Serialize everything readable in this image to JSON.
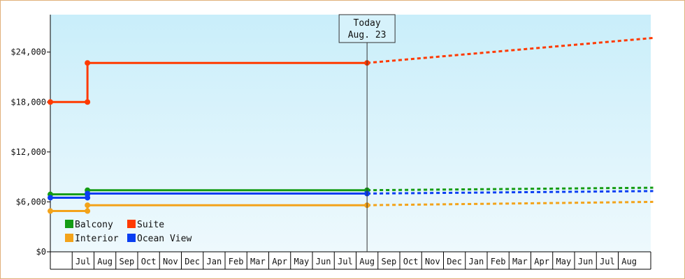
{
  "chart_data": {
    "type": "line",
    "title": "",
    "xlabel": "",
    "ylabel": "",
    "x_months": [
      "Jun",
      "Jul",
      "Aug",
      "Sep",
      "Oct",
      "Nov",
      "Dec",
      "Jan",
      "Feb",
      "Mar",
      "Apr",
      "May",
      "Jun",
      "Jul",
      "Aug",
      "Sep",
      "Oct",
      "Nov",
      "Dec",
      "Jan",
      "Feb",
      "Mar",
      "Apr",
      "May",
      "Jun",
      "Jul",
      "Aug"
    ],
    "x_tick_labels": [
      "Jul",
      "Aug",
      "Sep",
      "Oct",
      "Nov",
      "Dec",
      "Jan",
      "Feb",
      "Mar",
      "Apr",
      "May",
      "Jun",
      "Jul",
      "Aug",
      "Sep",
      "Oct",
      "Nov",
      "Dec",
      "Jan",
      "Feb",
      "Mar",
      "Apr",
      "May",
      "Jun",
      "Jul",
      "Aug"
    ],
    "ylim": [
      0,
      28500
    ],
    "y_ticks": [
      0,
      6000,
      12000,
      18000,
      24000
    ],
    "y_tick_labels": [
      "$0",
      "$6,000",
      "$12,000",
      "$18,000",
      "$24,000"
    ],
    "grid": false,
    "today": {
      "line1": "Today",
      "line2": "Aug. 23",
      "month_index": 14.5
    },
    "legend_position": "bottom-left",
    "series": [
      {
        "name": "Suite",
        "color": "#ff3a00",
        "history": [
          [
            0,
            18000
          ],
          [
            1.7,
            18000
          ],
          [
            1.7,
            22700
          ],
          [
            14.5,
            22700
          ]
        ],
        "forecast": [
          [
            14.5,
            22700
          ],
          [
            27.6,
            25700
          ]
        ],
        "markers": [
          0,
          1,
          2,
          3
        ]
      },
      {
        "name": "Balcony",
        "color": "#149c14",
        "history": [
          [
            0,
            6900
          ],
          [
            1.7,
            6900
          ],
          [
            1.7,
            7400
          ],
          [
            14.5,
            7400
          ]
        ],
        "forecast": [
          [
            14.5,
            7400
          ],
          [
            27.6,
            7700
          ]
        ],
        "markers": [
          0,
          1,
          2,
          3
        ]
      },
      {
        "name": "Ocean View",
        "color": "#0a3ef2",
        "history": [
          [
            0,
            6500
          ],
          [
            1.7,
            6500
          ],
          [
            1.7,
            7000
          ],
          [
            14.5,
            7000
          ]
        ],
        "forecast": [
          [
            14.5,
            7000
          ],
          [
            27.6,
            7300
          ]
        ],
        "markers": [
          0,
          1,
          2,
          3
        ]
      },
      {
        "name": "Interior",
        "color": "#f3a31a",
        "history": [
          [
            0,
            4900
          ],
          [
            1.7,
            4900
          ],
          [
            1.7,
            5600
          ],
          [
            14.5,
            5600
          ]
        ],
        "forecast": [
          [
            14.5,
            5600
          ],
          [
            27.6,
            6000
          ]
        ],
        "markers": [
          0,
          1,
          2,
          3
        ]
      }
    ],
    "legend": [
      {
        "name": "Balcony",
        "color": "#149c14"
      },
      {
        "name": "Suite",
        "color": "#ff3a00"
      },
      {
        "name": "Interior",
        "color": "#f3a31a"
      },
      {
        "name": "Ocean View",
        "color": "#0a3ef2"
      }
    ]
  }
}
